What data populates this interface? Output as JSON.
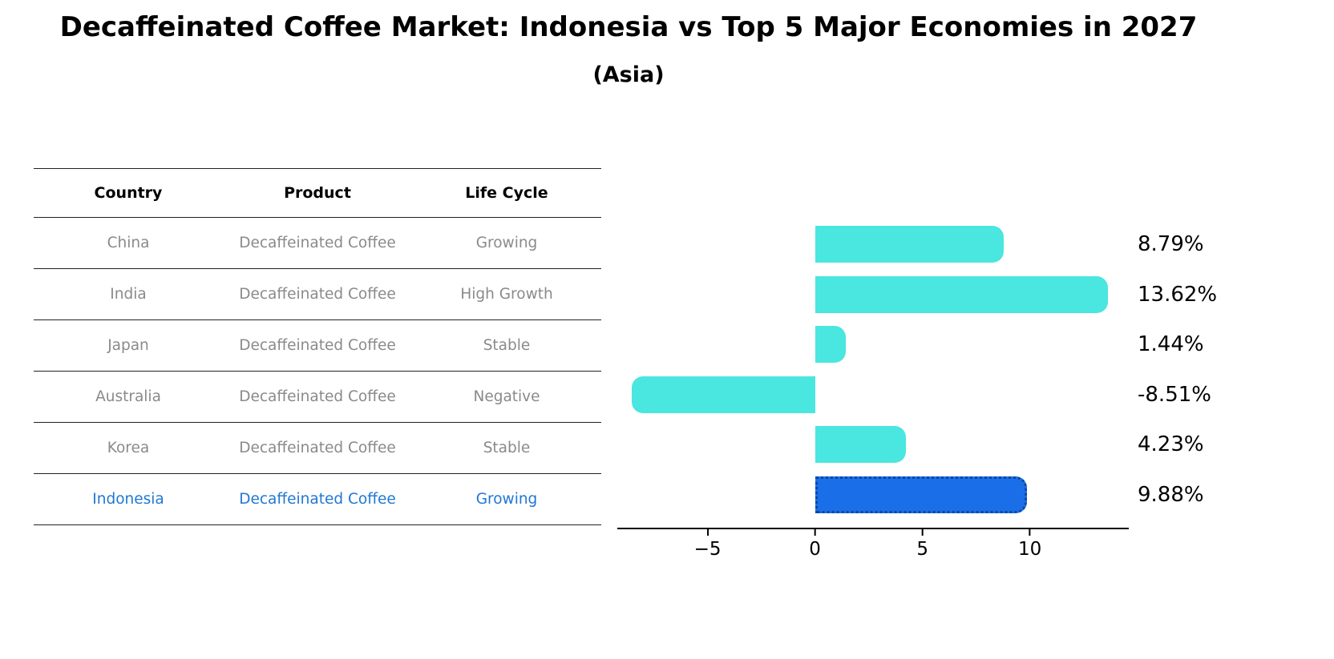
{
  "title": "Decaffeinated Coffee Market: Indonesia vs Top 5 Major Economies in 2027",
  "subtitle": "(Asia)",
  "table": {
    "headers": [
      "Country",
      "Product",
      "Life Cycle"
    ],
    "rows": [
      {
        "country": "China",
        "product": "Decaffeinated Coffee",
        "life_cycle": "Growing",
        "highlight": false
      },
      {
        "country": "India",
        "product": "Decaffeinated Coffee",
        "life_cycle": "High Growth",
        "highlight": false
      },
      {
        "country": "Japan",
        "product": "Decaffeinated Coffee",
        "life_cycle": "Stable",
        "highlight": false
      },
      {
        "country": "Australia",
        "product": "Decaffeinated Coffee",
        "life_cycle": "Negative",
        "highlight": false
      },
      {
        "country": "Korea",
        "product": "Decaffeinated Coffee",
        "life_cycle": "Stable",
        "highlight": false
      },
      {
        "country": "Indonesia",
        "product": "Decaffeinated Coffee",
        "life_cycle": "Growing",
        "highlight": true
      }
    ]
  },
  "chart_data": {
    "type": "bar",
    "orientation": "horizontal",
    "title": "Decaffeinated Coffee Market: Indonesia vs Top 5 Major Economies in 2027",
    "subtitle": "(Asia)",
    "categories": [
      "China",
      "India",
      "Japan",
      "Australia",
      "Korea",
      "Indonesia"
    ],
    "values": [
      8.79,
      13.62,
      1.44,
      -8.51,
      4.23,
      9.88
    ],
    "labels": [
      "8.79%",
      "13.62%",
      "1.44%",
      "-8.51%",
      "4.23%",
      "9.88%"
    ],
    "x_ticks": [
      -5,
      0,
      5,
      10
    ],
    "tick_labels": [
      "−5",
      "0",
      "5",
      "10"
    ],
    "xlim": [
      -9.2,
      14.6
    ],
    "grid": false,
    "legend": "none",
    "bar_color": "#4AE6E0",
    "highlight_index": 5,
    "highlight_color": "#1A6FE8",
    "highlight_border": "#0D47A1"
  },
  "colors": {
    "bar": "#4AE6E0",
    "highlight_bar": "#1A6FE8",
    "highlight_text": "#1F77D4",
    "muted_text": "#8a8a8a"
  }
}
